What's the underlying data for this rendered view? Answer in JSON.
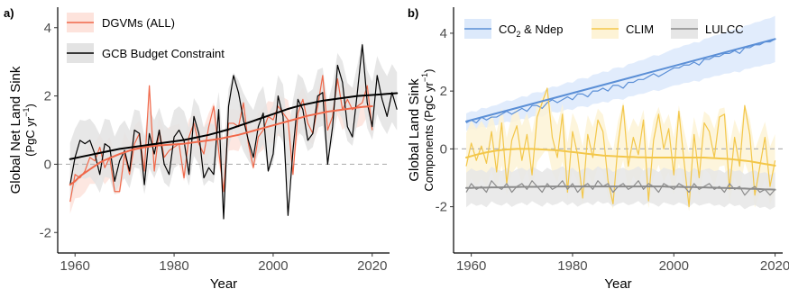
{
  "chart_data": [
    {
      "panel_label": "a)",
      "type": "line",
      "xlabel": "Year",
      "ylabel_line1": "Global Net Land Sink",
      "ylabel_line2": "(PgC yr",
      "ylabel_sup": "−1",
      "ylabel_close": ")",
      "xlim": [
        1956.5,
        2023.5
      ],
      "ylim": [
        -2.6,
        4.6
      ],
      "xticks": [
        1960,
        1980,
        2000,
        2020
      ],
      "xtick_labels": [
        "1960",
        "1980",
        "2000",
        "2020"
      ],
      "yticks": [
        -2,
        0,
        2,
        4
      ],
      "ytick_labels": [
        "-2",
        "0",
        "2",
        "4"
      ],
      "zero_line": true,
      "legend_position": "top-left",
      "years_start": 1959,
      "series": [
        {
          "name": "DGVMs (ALL)",
          "color": "#f0684a",
          "band_color": "#fde3dc",
          "band_halfwidth": 0.6,
          "values": [
            -1.1,
            -0.3,
            -0.4,
            -0.2,
            0.2,
            0.1,
            0.5,
            -0.1,
            0.2,
            -0.8,
            -0.8,
            0.3,
            -0.3,
            0.6,
            0.9,
            -0.2,
            2.3,
            -0.2,
            1.0,
            0.2,
            0.4,
            0.5,
            0.6,
            -0.4,
            0.8,
            1.2,
            0.6,
            0.3,
            1.1,
            1.7,
            0.4,
            -0.8,
            1.2,
            1.2,
            1.1,
            1.8,
            0.6,
            -0.1,
            0.8,
            1.0,
            1.4,
            1.3,
            1.7,
            1.5,
            1.3,
            -0.3,
            1.5,
            1.9,
            1.2,
            0.9,
            1.7,
            2.6,
            1.0,
            1.4,
            2.5,
            1.6,
            1.9,
            1.6,
            1.7,
            1.8,
            2.3,
            1.0
          ],
          "trend": [
            -0.6,
            -0.5,
            -0.35,
            -0.25,
            -0.15,
            -0.05,
            0.05,
            0.12,
            0.18,
            0.24,
            0.3,
            0.35,
            0.4,
            0.44,
            0.47,
            0.5,
            0.52,
            0.54,
            0.55,
            0.56,
            0.57,
            0.58,
            0.59,
            0.6,
            0.62,
            0.64,
            0.66,
            0.68,
            0.7,
            0.72,
            0.74,
            0.77,
            0.8,
            0.83,
            0.86,
            0.9,
            0.94,
            0.98,
            1.02,
            1.06,
            1.1,
            1.14,
            1.18,
            1.22,
            1.26,
            1.3,
            1.34,
            1.38,
            1.42,
            1.45,
            1.48,
            1.51,
            1.54,
            1.56,
            1.58,
            1.6,
            1.62,
            1.64,
            1.66,
            1.68,
            1.69,
            1.7
          ]
        },
        {
          "name": "GCB Budget Constraint",
          "color": "#000000",
          "band_color": "#e3e3e3",
          "band_halfwidth": 0.85,
          "values": [
            -0.6,
            0.2,
            0.7,
            0.6,
            0.7,
            0.3,
            -0.3,
            0.6,
            0.5,
            -0.5,
            0.1,
            0.4,
            -0.2,
            1.0,
            0.9,
            -0.6,
            0.9,
            0.3,
            1.0,
            0.0,
            -0.3,
            0.8,
            1.0,
            0.7,
            -0.3,
            1.4,
            0.9,
            -0.4,
            -0.1,
            -0.3,
            1.6,
            -1.6,
            1.7,
            2.6,
            2.1,
            1.3,
            0.7,
            0.2,
            1.1,
            1.5,
            -0.2,
            0.3,
            2.0,
            1.4,
            -1.5,
            0.4,
            1.9,
            1.6,
            0.7,
            0.9,
            2.0,
            2.1,
            0.0,
            1.1,
            2.9,
            2.4,
            1.1,
            0.8,
            2.1,
            3.5,
            1.8,
            1.1,
            2.6,
            1.9,
            1.4,
            2.1,
            1.6
          ],
          "trend": [
            0.15,
            0.18,
            0.21,
            0.24,
            0.27,
            0.3,
            0.33,
            0.36,
            0.39,
            0.42,
            0.45,
            0.47,
            0.49,
            0.51,
            0.53,
            0.55,
            0.57,
            0.59,
            0.61,
            0.63,
            0.65,
            0.67,
            0.69,
            0.71,
            0.74,
            0.77,
            0.8,
            0.83,
            0.86,
            0.9,
            0.94,
            0.98,
            1.02,
            1.07,
            1.12,
            1.17,
            1.22,
            1.27,
            1.32,
            1.37,
            1.42,
            1.47,
            1.52,
            1.57,
            1.62,
            1.66,
            1.7,
            1.74,
            1.77,
            1.8,
            1.83,
            1.86,
            1.88,
            1.9,
            1.92,
            1.94,
            1.96,
            1.98,
            2.0,
            2.01,
            2.02,
            2.03,
            2.04,
            2.05,
            2.06,
            2.07,
            2.08
          ]
        }
      ]
    },
    {
      "panel_label": "b)",
      "type": "line",
      "xlabel": "Year",
      "ylabel_line1": "Global Land Sink",
      "ylabel_line2": "Components (PgC yr",
      "ylabel_sup": "−1",
      "ylabel_close": ")",
      "xlim": [
        1956.5,
        2021.5
      ],
      "ylim": [
        -3.6,
        4.9
      ],
      "xticks": [
        1960,
        1980,
        2000,
        2020
      ],
      "xtick_labels": [
        "1960",
        "1980",
        "2000",
        "2020"
      ],
      "yticks": [
        -2,
        0,
        2,
        4
      ],
      "ytick_labels": [
        "-2",
        "0",
        "2",
        "4"
      ],
      "zero_line": true,
      "legend_position": "top-left",
      "years_start": 1959,
      "series": [
        {
          "name_main": "CO",
          "name_sub": "2",
          "name_rest": " & Ndep",
          "color": "#5b8fd6",
          "band_color": "#dce9fb",
          "band_halfwidth_start": 0.3,
          "band_halfwidth_end": 0.8,
          "values": [
            0.9,
            1.0,
            0.9,
            1.1,
            1.0,
            1.1,
            1.1,
            1.2,
            1.3,
            1.2,
            1.3,
            1.4,
            1.3,
            1.5,
            1.5,
            1.4,
            1.6,
            1.7,
            1.6,
            1.7,
            1.8,
            1.7,
            1.9,
            1.9,
            1.8,
            2.0,
            2.0,
            2.1,
            2.0,
            2.2,
            2.2,
            2.1,
            2.3,
            2.3,
            2.4,
            2.4,
            2.5,
            2.6,
            2.5,
            2.6,
            2.7,
            2.8,
            2.8,
            2.9,
            2.9,
            3.0,
            2.9,
            3.1,
            3.1,
            3.2,
            3.2,
            3.3,
            3.3,
            3.4,
            3.3,
            3.5,
            3.5,
            3.6,
            3.6,
            3.7,
            3.7,
            3.8
          ],
          "trend_start": 0.95,
          "trend_end": 3.8
        },
        {
          "name": "CLIM",
          "color": "#f3c74a",
          "band_color": "#fdf3d6",
          "band_halfwidth": 1.0,
          "values": [
            -0.6,
            0.2,
            -0.4,
            0.1,
            -0.5,
            0.6,
            -0.8,
            0.9,
            -1.2,
            0.3,
            0.8,
            -0.4,
            0.5,
            -0.9,
            1.1,
            1.6,
            2.1,
            0.4,
            -0.3,
            1.2,
            -1.5,
            0.6,
            -0.2,
            -1.7,
            0.5,
            -0.3,
            1.0,
            0.6,
            -1.1,
            -1.9,
            0.2,
            1.5,
            -0.6,
            0.4,
            -0.2,
            1.0,
            -1.8,
            0.3,
            1.2,
            0.0,
            0.7,
            -0.9,
            1.3,
            -0.4,
            -2.0,
            0.5,
            -1.0,
            0.9,
            0.6,
            -0.3,
            1.1,
            1.2,
            -1.4,
            0.4,
            -0.6,
            1.5,
            0.5,
            -1.6,
            -0.6,
            0.4,
            -1.3,
            -0.4
          ],
          "trend": [
            -0.3,
            -0.25,
            -0.2,
            -0.16,
            -0.12,
            -0.09,
            -0.06,
            -0.04,
            -0.02,
            -0.01,
            0.0,
            0.0,
            0.0,
            0.0,
            -0.01,
            -0.02,
            -0.03,
            -0.04,
            -0.05,
            -0.07,
            -0.09,
            -0.11,
            -0.13,
            -0.15,
            -0.17,
            -0.19,
            -0.21,
            -0.23,
            -0.24,
            -0.25,
            -0.26,
            -0.27,
            -0.28,
            -0.28,
            -0.29,
            -0.29,
            -0.3,
            -0.3,
            -0.3,
            -0.3,
            -0.3,
            -0.3,
            -0.3,
            -0.3,
            -0.3,
            -0.3,
            -0.3,
            -0.3,
            -0.31,
            -0.32,
            -0.33,
            -0.34,
            -0.35,
            -0.37,
            -0.39,
            -0.41,
            -0.43,
            -0.46,
            -0.49,
            -0.52,
            -0.55,
            -0.58
          ]
        },
        {
          "name": "LULCC",
          "color": "#8c8c8c",
          "band_color": "#e6e6e6",
          "band_halfwidth": 0.6,
          "values": [
            -1.5,
            -1.2,
            -1.4,
            -1.3,
            -1.5,
            -1.1,
            -1.3,
            -1.4,
            -1.2,
            -1.5,
            -1.3,
            -1.2,
            -1.4,
            -1.1,
            -1.3,
            -1.5,
            -1.2,
            -1.4,
            -1.3,
            -1.1,
            -1.4,
            -1.2,
            -1.5,
            -1.3,
            -1.2,
            -1.4,
            -1.1,
            -1.3,
            -1.2,
            -1.5,
            -1.3,
            -1.2,
            -1.4,
            -1.3,
            -1.1,
            -1.4,
            -1.2,
            -1.3,
            -1.5,
            -1.2,
            -1.3,
            -1.4,
            -1.2,
            -1.3,
            -1.5,
            -1.2,
            -1.4,
            -1.3,
            -1.2,
            -1.4,
            -1.3,
            -1.5,
            -1.2,
            -1.4,
            -1.3,
            -1.6,
            -1.4,
            -1.3,
            -1.5,
            -1.4,
            -1.6,
            -1.4
          ],
          "trend": [
            -1.35,
            -1.35,
            -1.34,
            -1.34,
            -1.34,
            -1.33,
            -1.33,
            -1.33,
            -1.32,
            -1.32,
            -1.32,
            -1.31,
            -1.31,
            -1.31,
            -1.31,
            -1.3,
            -1.3,
            -1.3,
            -1.3,
            -1.3,
            -1.3,
            -1.3,
            -1.3,
            -1.3,
            -1.3,
            -1.3,
            -1.3,
            -1.3,
            -1.3,
            -1.3,
            -1.3,
            -1.3,
            -1.3,
            -1.3,
            -1.3,
            -1.3,
            -1.3,
            -1.3,
            -1.3,
            -1.3,
            -1.31,
            -1.31,
            -1.31,
            -1.32,
            -1.32,
            -1.32,
            -1.33,
            -1.33,
            -1.34,
            -1.34,
            -1.35,
            -1.35,
            -1.36,
            -1.36,
            -1.37,
            -1.37,
            -1.38,
            -1.38,
            -1.39,
            -1.4,
            -1.4,
            -1.41
          ]
        }
      ]
    }
  ]
}
